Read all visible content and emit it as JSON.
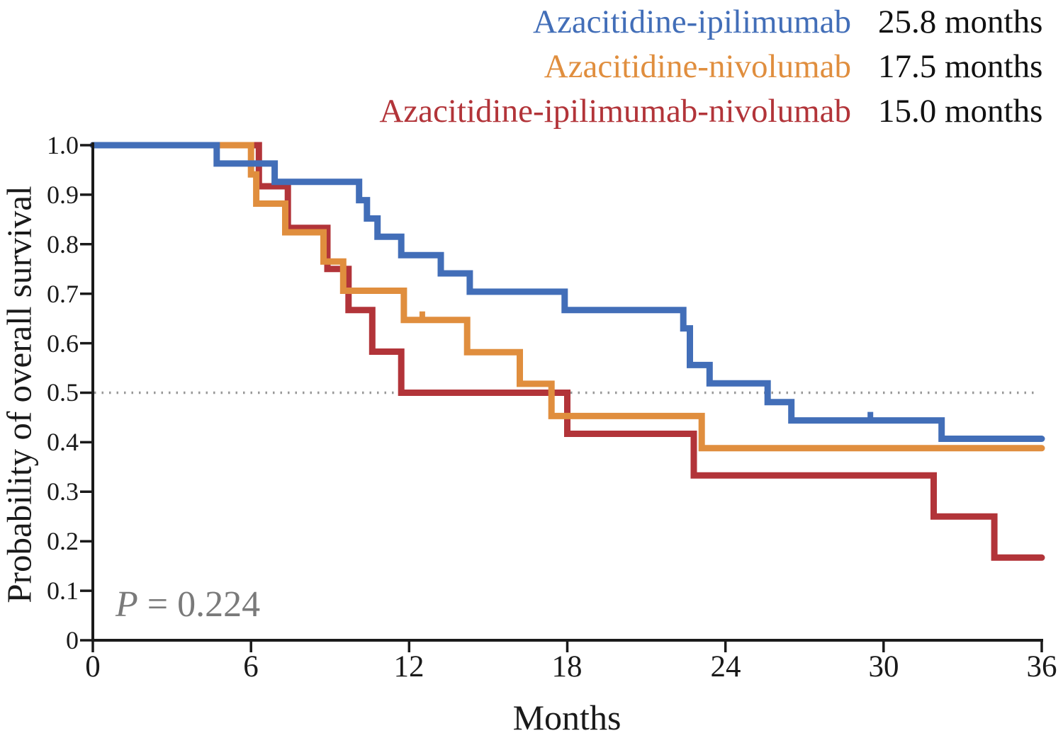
{
  "figure": {
    "kind": "kaplan-meier-survival-plot",
    "background": "#ffffff",
    "axis_color": "#1a1a1a",
    "reference_line_color": "#999999",
    "p_annotation_color": "#7a7a7a"
  },
  "chart_data": {
    "type": "line",
    "subtype": "kaplan-meier-step",
    "xlabel": "Months",
    "ylabel": "Probability of overall survival",
    "xlim": [
      0,
      36
    ],
    "ylim": [
      0,
      1.0
    ],
    "x_ticks": [
      "0",
      "6",
      "12",
      "18",
      "24",
      "30",
      "36"
    ],
    "y_ticks": [
      "1.0",
      "0.9",
      "0.8",
      "0.7",
      "0.6",
      "0.5",
      "0.4",
      "0.3",
      "0.2",
      "0.1",
      "0"
    ],
    "grid": false,
    "legend_position": "top-right",
    "reference_line_y": 0.5,
    "annotations": {
      "p_label": "P",
      "p_rest": "= 0.224"
    },
    "series": [
      {
        "name": "Azacitidine-ipilimumab",
        "median": "25.8 months",
        "color": "#426EB8",
        "points": [
          [
            0,
            1.0
          ],
          [
            4.7,
            0.963
          ],
          [
            6.9,
            0.926
          ],
          [
            10.1,
            0.889
          ],
          [
            10.4,
            0.852
          ],
          [
            10.8,
            0.815
          ],
          [
            11.7,
            0.778
          ],
          [
            13.2,
            0.741
          ],
          [
            14.3,
            0.704
          ],
          [
            17.9,
            0.667
          ],
          [
            22.4,
            0.63
          ],
          [
            22.65,
            0.556
          ],
          [
            23.4,
            0.519
          ],
          [
            25.6,
            0.481
          ],
          [
            26.5,
            0.444
          ],
          [
            32.2,
            0.407
          ],
          [
            36,
            0.407
          ]
        ],
        "censor_marks": [
          [
            29.5,
            0.444
          ]
        ]
      },
      {
        "name": "Azacitidine-nivolumab",
        "median": "17.5 months",
        "color": "#E08E3E",
        "points": [
          [
            0,
            1.0
          ],
          [
            6.0,
            0.941
          ],
          [
            6.2,
            0.882
          ],
          [
            7.3,
            0.824
          ],
          [
            8.75,
            0.765
          ],
          [
            9.5,
            0.706
          ],
          [
            11.8,
            0.647
          ],
          [
            14.2,
            0.582
          ],
          [
            16.2,
            0.518
          ],
          [
            17.4,
            0.453
          ],
          [
            23.1,
            0.388
          ],
          [
            36,
            0.388
          ]
        ],
        "censor_marks": [
          [
            12.5,
            0.647
          ]
        ]
      },
      {
        "name": "Azacitidine-ipilimumab-nivolumab",
        "median": "15.0 months",
        "color": "#B23439",
        "points": [
          [
            0,
            1.0
          ],
          [
            6.3,
            0.917
          ],
          [
            7.4,
            0.833
          ],
          [
            8.9,
            0.75
          ],
          [
            9.7,
            0.667
          ],
          [
            10.6,
            0.583
          ],
          [
            11.7,
            0.5
          ],
          [
            18.0,
            0.417
          ],
          [
            22.8,
            0.333
          ],
          [
            31.9,
            0.25
          ],
          [
            34.2,
            0.167
          ],
          [
            36,
            0.167
          ]
        ],
        "censor_marks": []
      }
    ]
  }
}
